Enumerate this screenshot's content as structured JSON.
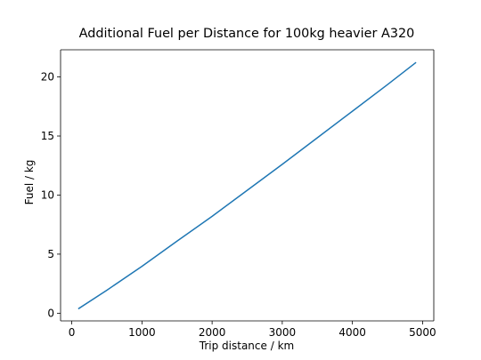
{
  "chart_data": {
    "type": "line",
    "title": "Additional Fuel per Distance for 100kg heavier A320",
    "xlabel": "Trip distance / km",
    "ylabel": "Fuel / kg",
    "xlim": [
      -160,
      5160
    ],
    "ylim": [
      -0.65,
      22.3
    ],
    "xticks": [
      0,
      1000,
      2000,
      3000,
      4000,
      5000
    ],
    "yticks": [
      0,
      5,
      10,
      15,
      20
    ],
    "grid": false,
    "legend": "none",
    "series": [
      {
        "color": "#1f77b4",
        "x": [
          100,
          500,
          1000,
          1500,
          2000,
          2500,
          3000,
          3500,
          4000,
          4500,
          4900
        ],
        "y": [
          0.4,
          1.95,
          3.97,
          6.1,
          8.2,
          10.4,
          12.6,
          14.85,
          17.1,
          19.35,
          21.2
        ]
      }
    ]
  }
}
